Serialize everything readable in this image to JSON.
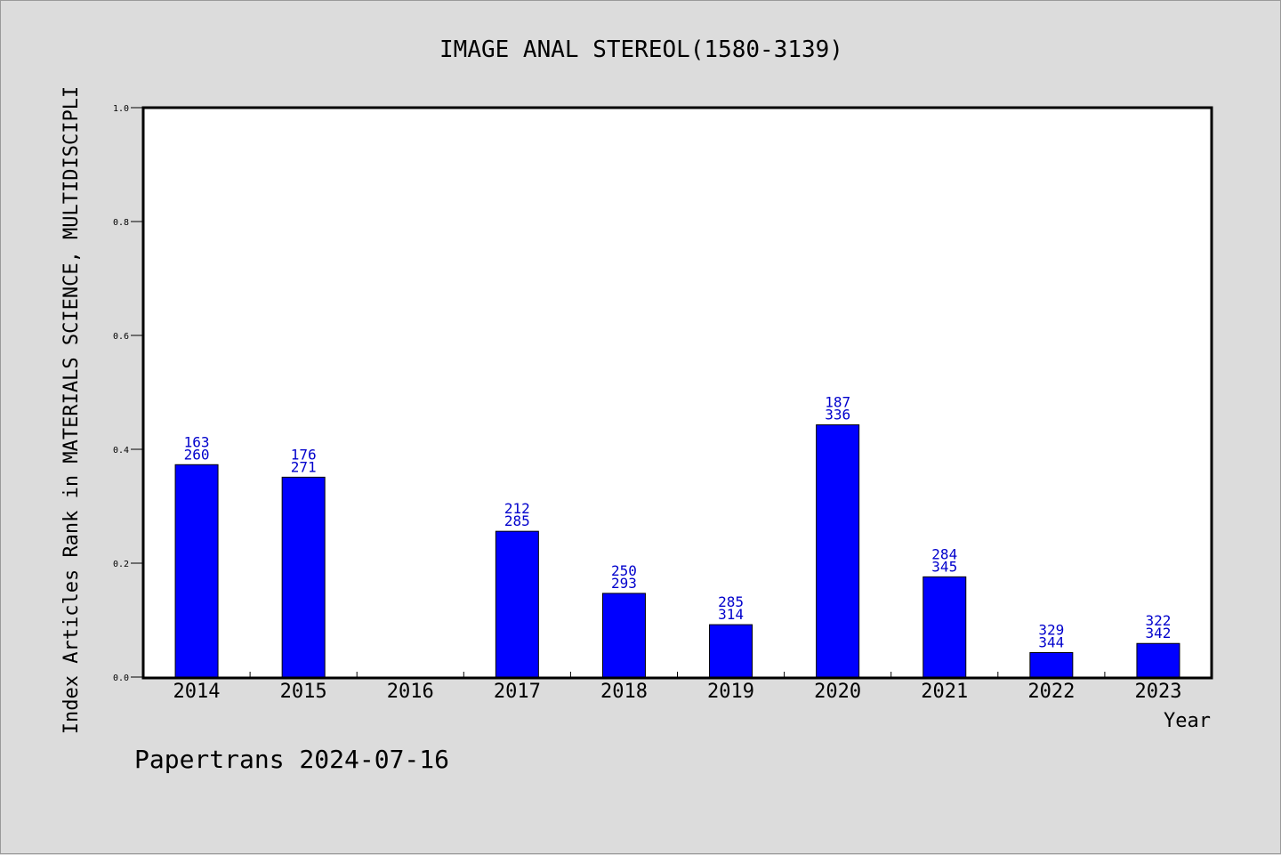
{
  "chart_data": {
    "type": "bar",
    "title": "IMAGE ANAL STEREOL(1580-3139)",
    "xlabel": "Year",
    "ylabel": "Index Articles Rank in MATERIALS SCIENCE, MULTIDISCIPLI",
    "footer": "Papertrans 2024-07-16",
    "ylim": [
      0,
      1.0
    ],
    "yticks": [
      "0.0",
      "0.2",
      "0.4",
      "0.6",
      "0.8",
      "1.0"
    ],
    "categories": [
      "2014",
      "2015",
      "2016",
      "2017",
      "2018",
      "2019",
      "2020",
      "2021",
      "2022",
      "2023"
    ],
    "values": [
      0.373,
      0.351,
      null,
      0.256,
      0.147,
      0.092,
      0.443,
      0.176,
      0.043,
      0.059
    ],
    "label_top": [
      "163",
      "176",
      "",
      "212",
      "250",
      "285",
      "187",
      "284",
      "329",
      "322"
    ],
    "label_bottom": [
      "260",
      "271",
      "",
      "285",
      "293",
      "314",
      "336",
      "345",
      "344",
      "342"
    ],
    "bar_color": "#0000ff",
    "label_color": "#0000cc",
    "grid": false,
    "legend": "none"
  }
}
